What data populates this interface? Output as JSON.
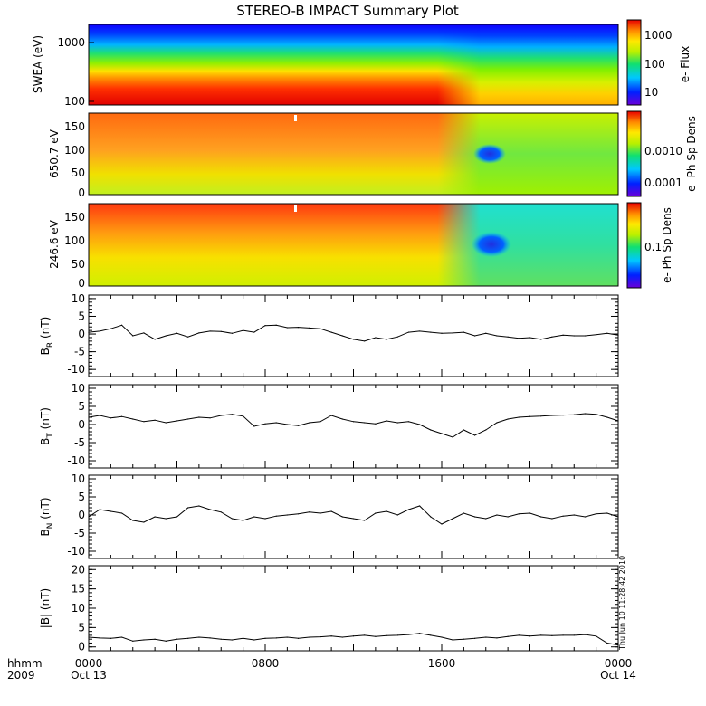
{
  "title": "STEREO-B IMPACT Summary Plot",
  "stamp": "Thu Jun 10 11:28:42 2010",
  "x_axis": {
    "row_label": "hhmm",
    "year": "2009",
    "ticks": [
      {
        "hour": 0,
        "label": "0000",
        "date": "Oct 13"
      },
      {
        "hour": 8,
        "label": "0800",
        "date": ""
      },
      {
        "hour": 16,
        "label": "1600",
        "date": ""
      },
      {
        "hour": 24,
        "label": "0000",
        "date": "Oct 14"
      }
    ],
    "range": [
      0,
      24
    ],
    "unit": "hours"
  },
  "colorbars": {
    "flux": {
      "label": "e- Flux",
      "ticks": [
        "1000",
        "100",
        "10"
      ],
      "scale": "log",
      "range": [
        3,
        3000
      ]
    },
    "phase1": {
      "label": "e- Ph Sp Dens",
      "ticks": [
        "0.0010",
        "0.0001"
      ],
      "scale": "log",
      "range": [
        5e-05,
        0.005
      ]
    },
    "phase2": {
      "label": "e- Ph Sp Dens",
      "ticks": [
        "0.1"
      ],
      "scale": "log",
      "range": [
        0.02,
        0.6
      ]
    }
  },
  "spectrograms": [
    {
      "ylabel": "SWEA (eV)",
      "yticks": [
        "1000",
        "100"
      ],
      "scale": "log",
      "yrange": [
        90,
        2000
      ]
    },
    {
      "ylabel": "650.7 eV",
      "yticks": [
        "150",
        "100",
        "50",
        "0"
      ],
      "yrange": [
        -10,
        180
      ]
    },
    {
      "ylabel": "246.6 eV",
      "yticks": [
        "150",
        "100",
        "50",
        "0"
      ],
      "yrange": [
        -10,
        180
      ]
    }
  ],
  "chart_data": [
    {
      "type": "line",
      "ylabel_base": "B",
      "ylabel_sub": "R",
      "ylabel_unit": " (nT)",
      "ylim": [
        -12,
        11
      ],
      "yticks": [
        "10",
        "5",
        "0",
        "-5",
        "-10"
      ],
      "x": [
        0,
        0.5,
        1,
        1.5,
        2,
        2.5,
        3,
        3.5,
        4,
        4.5,
        5,
        5.5,
        6,
        6.5,
        7,
        7.5,
        8,
        8.5,
        9,
        9.5,
        10,
        10.5,
        11,
        11.5,
        12,
        12.5,
        13,
        13.5,
        14,
        14.5,
        15,
        15.5,
        16,
        16.5,
        17,
        17.5,
        18,
        18.5,
        19,
        19.5,
        20,
        20.5,
        21,
        21.5,
        22,
        22.5,
        23,
        23.5,
        24
      ],
      "y": [
        0.5,
        0.8,
        1.5,
        2.5,
        -0.5,
        0.3,
        -1.5,
        -0.5,
        0.2,
        -0.8,
        0.3,
        0.8,
        0.7,
        0.2,
        1.0,
        0.5,
        2.4,
        2.5,
        1.8,
        1.9,
        1.7,
        1.5,
        0.5,
        -0.5,
        -1.5,
        -2.0,
        -1.0,
        -1.5,
        -0.8,
        0.5,
        0.8,
        0.5,
        0.2,
        0.3,
        0.5,
        -0.5,
        0.2,
        -0.5,
        -0.8,
        -1.2,
        -1.0,
        -1.5,
        -0.8,
        -0.3,
        -0.5,
        -0.5,
        -0.2,
        0.2,
        -0.3
      ]
    },
    {
      "type": "line",
      "ylabel_base": "B",
      "ylabel_sub": "T",
      "ylabel_unit": " (nT)",
      "ylim": [
        -12,
        11
      ],
      "yticks": [
        "10",
        "5",
        "0",
        "-5",
        "-10"
      ],
      "x": [
        0,
        0.5,
        1,
        1.5,
        2,
        2.5,
        3,
        3.5,
        4,
        4.5,
        5,
        5.5,
        6,
        6.5,
        7,
        7.5,
        8,
        8.5,
        9,
        9.5,
        10,
        10.5,
        11,
        11.5,
        12,
        12.5,
        13,
        13.5,
        14,
        14.5,
        15,
        15.5,
        16,
        16.5,
        17,
        17.5,
        18,
        18.5,
        19,
        19.5,
        20,
        20.5,
        21,
        21.5,
        22,
        22.5,
        23,
        23.5,
        24
      ],
      "y": [
        2.0,
        2.5,
        1.8,
        2.2,
        1.5,
        0.8,
        1.2,
        0.5,
        1.0,
        1.5,
        2.0,
        1.8,
        2.5,
        2.8,
        2.3,
        -0.5,
        0.2,
        0.5,
        0.0,
        -0.3,
        0.5,
        0.8,
        2.5,
        1.5,
        0.8,
        0.5,
        0.2,
        1.0,
        0.5,
        0.8,
        0.0,
        -1.5,
        -2.5,
        -3.5,
        -1.5,
        -3.0,
        -1.5,
        0.5,
        1.5,
        2.0,
        2.2,
        2.3,
        2.5,
        2.6,
        2.7,
        3.0,
        2.8,
        2.0,
        1.0
      ]
    },
    {
      "type": "line",
      "ylabel_base": "B",
      "ylabel_sub": "N",
      "ylabel_unit": " (nT)",
      "ylim": [
        -12,
        11
      ],
      "yticks": [
        "10",
        "5",
        "0",
        "-5",
        "-10"
      ],
      "x": [
        0,
        0.5,
        1,
        1.5,
        2,
        2.5,
        3,
        3.5,
        4,
        4.5,
        5,
        5.5,
        6,
        6.5,
        7,
        7.5,
        8,
        8.5,
        9,
        9.5,
        10,
        10.5,
        11,
        11.5,
        12,
        12.5,
        13,
        13.5,
        14,
        14.5,
        15,
        15.5,
        16,
        16.5,
        17,
        17.5,
        18,
        18.5,
        19,
        19.5,
        20,
        20.5,
        21,
        21.5,
        22,
        22.5,
        23,
        23.5,
        24
      ],
      "y": [
        -0.5,
        1.5,
        1.0,
        0.5,
        -1.5,
        -2.0,
        -0.5,
        -1.0,
        -0.5,
        2.0,
        2.5,
        1.5,
        0.8,
        -1.0,
        -1.5,
        -0.5,
        -1.0,
        -0.3,
        0.0,
        0.3,
        0.8,
        0.5,
        1.0,
        -0.5,
        -1.0,
        -1.5,
        0.5,
        1.0,
        0.0,
        1.5,
        2.5,
        -0.5,
        -2.5,
        -1.0,
        0.5,
        -0.5,
        -1.0,
        0.0,
        -0.5,
        0.3,
        0.5,
        -0.5,
        -1.0,
        -0.3,
        0.0,
        -0.5,
        0.3,
        0.5,
        -0.5
      ]
    },
    {
      "type": "line",
      "ylabel_base": "|B|",
      "ylabel_sub": "",
      "ylabel_unit": " (nT)",
      "ylim": [
        -1,
        21
      ],
      "yticks": [
        "20",
        "15",
        "10",
        "5",
        "0"
      ],
      "x": [
        0,
        0.5,
        1,
        1.5,
        2,
        2.5,
        3,
        3.5,
        4,
        4.5,
        5,
        5.5,
        6,
        6.5,
        7,
        7.5,
        8,
        8.5,
        9,
        9.5,
        10,
        10.5,
        11,
        11.5,
        12,
        12.5,
        13,
        13.5,
        14,
        14.5,
        15,
        15.5,
        16,
        16.5,
        17,
        17.5,
        18,
        18.5,
        19,
        19.5,
        20,
        20.5,
        21,
        21.5,
        22,
        22.5,
        23,
        23.5,
        24
      ],
      "y": [
        2.5,
        2.3,
        2.2,
        2.5,
        1.5,
        1.8,
        2.0,
        1.5,
        2.0,
        2.2,
        2.5,
        2.3,
        2.0,
        1.8,
        2.2,
        1.8,
        2.2,
        2.3,
        2.5,
        2.2,
        2.5,
        2.6,
        2.8,
        2.5,
        2.8,
        3.0,
        2.7,
        2.9,
        3.0,
        3.2,
        3.5,
        3.0,
        2.5,
        1.8,
        2.0,
        2.2,
        2.5,
        2.3,
        2.7,
        3.0,
        2.8,
        3.0,
        2.9,
        3.0,
        3.0,
        3.2,
        2.8,
        1.0,
        0.5
      ]
    }
  ]
}
